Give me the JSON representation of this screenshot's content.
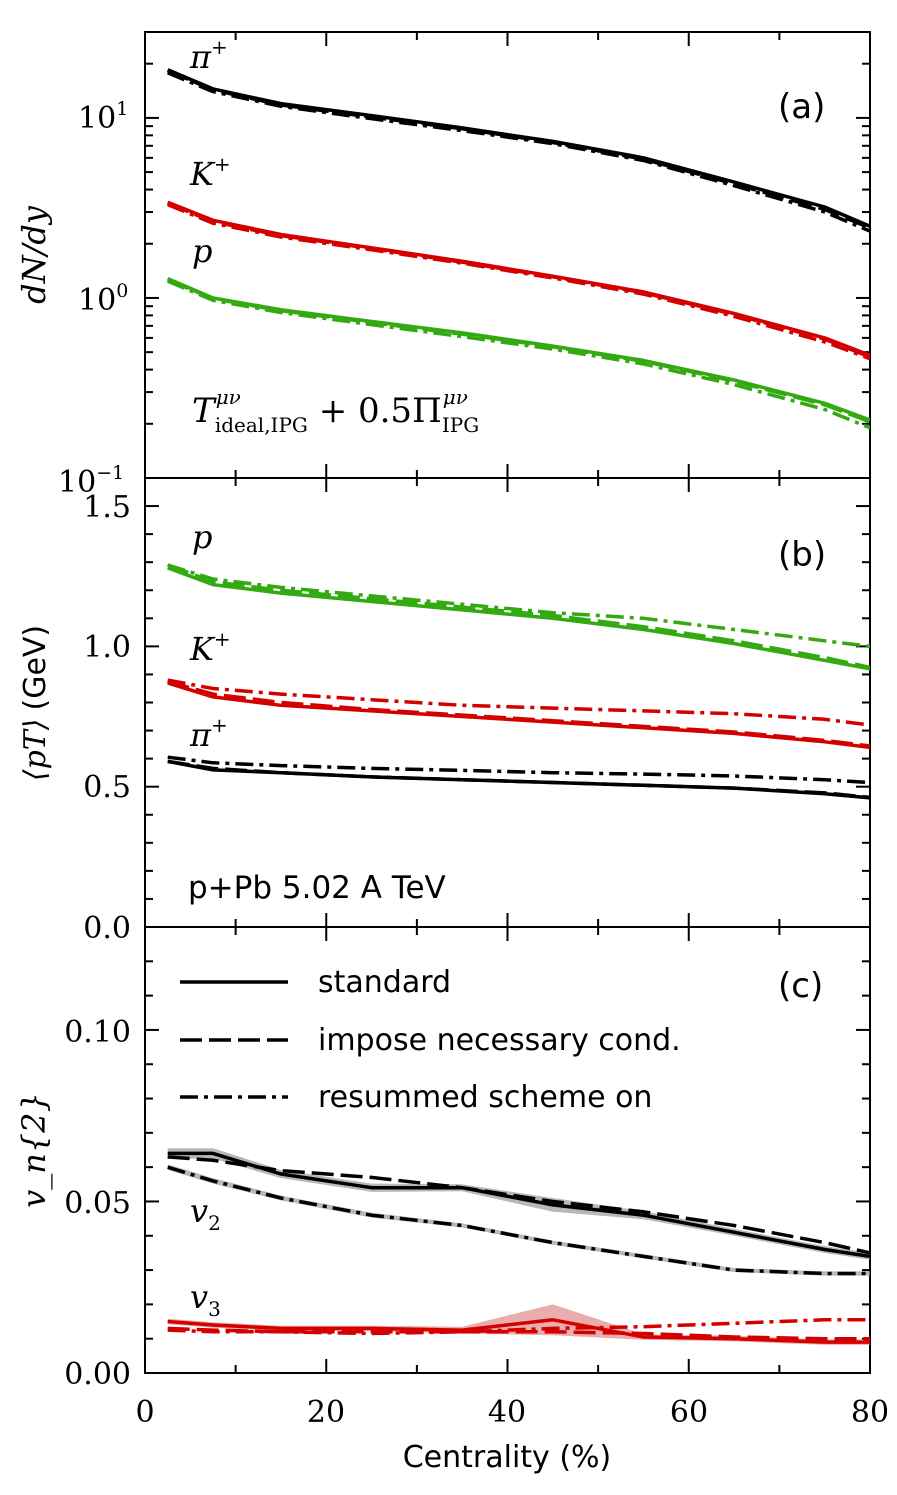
{
  "colors": {
    "pion": "#000000",
    "kaon": "#d40000",
    "proton": "#33aa11",
    "pion_band": "#9a9a9a",
    "kaon_band": "#e08a8a"
  },
  "xaxis": {
    "label": "Centrality (%)",
    "ticks": [
      "0",
      "20",
      "40",
      "60",
      "80"
    ]
  },
  "styles": {
    "standard": "standard",
    "necessary": "impose necessary cond.",
    "resummed": "resummed scheme on"
  },
  "chart_data": [
    {
      "panel": "(a)",
      "type": "line",
      "yscale": "log",
      "ylabel": "dN/dy",
      "ylim": [
        0.1,
        30
      ],
      "xlim": [
        0,
        80
      ],
      "ytick_labels": {
        "t1": "10",
        "t1_exp": "1",
        "t0": "10",
        "t0_exp": "0",
        "tm1": "10",
        "tm1_exp": "−1"
      },
      "annotation": {
        "T": "T",
        "T_sup": "μν",
        "T_sub": "ideal,IPG",
        "mid": " + 0.5Π",
        "Pi_sup": "μν",
        "Pi_sub": "IPG"
      },
      "species_labels": {
        "pion": "π",
        "pion_sup": "+",
        "kaon": "K",
        "kaon_sup": "+",
        "proton": "p"
      },
      "x": [
        2.5,
        7.5,
        15,
        25,
        35,
        45,
        55,
        65,
        75,
        80
      ],
      "series": [
        {
          "name": "π+ standard",
          "species": "pion",
          "style": "standard",
          "values": [
            18.5,
            14.5,
            12.0,
            10.3,
            8.8,
            7.4,
            6.0,
            4.4,
            3.2,
            2.5
          ]
        },
        {
          "name": "π+ impose necessary cond.",
          "species": "pion",
          "style": "necessary",
          "values": [
            18.3,
            14.3,
            11.8,
            10.1,
            8.7,
            7.3,
            5.9,
            4.3,
            3.1,
            2.45
          ]
        },
        {
          "name": "π+ resummed scheme on",
          "species": "pion",
          "style": "resummed",
          "values": [
            17.8,
            14.0,
            11.6,
            9.9,
            8.5,
            7.2,
            5.8,
            4.2,
            3.0,
            2.35
          ]
        },
        {
          "name": "K+ standard",
          "species": "kaon",
          "style": "standard",
          "values": [
            3.4,
            2.7,
            2.25,
            1.9,
            1.6,
            1.32,
            1.08,
            0.82,
            0.6,
            0.48
          ]
        },
        {
          "name": "K+ impose necessary cond.",
          "species": "kaon",
          "style": "necessary",
          "values": [
            3.35,
            2.65,
            2.22,
            1.88,
            1.58,
            1.31,
            1.07,
            0.81,
            0.59,
            0.47
          ]
        },
        {
          "name": "K+ resummed scheme on",
          "species": "kaon",
          "style": "resummed",
          "values": [
            3.3,
            2.6,
            2.18,
            1.85,
            1.56,
            1.29,
            1.05,
            0.79,
            0.57,
            0.46
          ]
        },
        {
          "name": "p standard",
          "species": "proton",
          "style": "standard",
          "values": [
            1.28,
            1.0,
            0.86,
            0.74,
            0.64,
            0.54,
            0.45,
            0.35,
            0.26,
            0.21
          ]
        },
        {
          "name": "p impose necessary cond.",
          "species": "proton",
          "style": "necessary",
          "values": [
            1.26,
            0.99,
            0.85,
            0.73,
            0.63,
            0.535,
            0.445,
            0.345,
            0.255,
            0.205
          ]
        },
        {
          "name": "p resummed scheme on",
          "species": "proton",
          "style": "resummed",
          "values": [
            1.24,
            0.97,
            0.83,
            0.71,
            0.61,
            0.52,
            0.43,
            0.33,
            0.24,
            0.19
          ]
        }
      ]
    },
    {
      "panel": "(b)",
      "type": "line",
      "yscale": "linear",
      "ylabel": "(GeV)",
      "ylabel_math": "⟨pT⟩",
      "ylim": [
        0.0,
        1.6
      ],
      "xlim": [
        0,
        80
      ],
      "ytick_labels": [
        "0.0",
        "0.5",
        "1.0",
        "1.5"
      ],
      "annotation": "p+Pb 5.02 A TeV",
      "species_labels": {
        "pion": "π",
        "pion_sup": "+",
        "kaon": "K",
        "kaon_sup": "+",
        "proton": "p"
      },
      "x": [
        2.5,
        7.5,
        15,
        25,
        35,
        45,
        55,
        65,
        75,
        80
      ],
      "series": [
        {
          "name": "p standard",
          "species": "proton",
          "style": "standard",
          "values": [
            1.28,
            1.22,
            1.19,
            1.16,
            1.13,
            1.1,
            1.06,
            1.01,
            0.95,
            0.92
          ]
        },
        {
          "name": "p impose necessary cond.",
          "species": "proton",
          "style": "necessary",
          "values": [
            1.29,
            1.23,
            1.2,
            1.17,
            1.14,
            1.11,
            1.07,
            1.02,
            0.96,
            0.925
          ]
        },
        {
          "name": "p resummed scheme on",
          "species": "proton",
          "style": "resummed",
          "values": [
            1.29,
            1.24,
            1.21,
            1.18,
            1.15,
            1.12,
            1.1,
            1.06,
            1.02,
            1.0
          ]
        },
        {
          "name": "K+ standard",
          "species": "kaon",
          "style": "standard",
          "values": [
            0.87,
            0.82,
            0.79,
            0.77,
            0.75,
            0.73,
            0.71,
            0.69,
            0.66,
            0.64
          ]
        },
        {
          "name": "K+ impose necessary cond.",
          "species": "kaon",
          "style": "necessary",
          "values": [
            0.875,
            0.83,
            0.8,
            0.775,
            0.755,
            0.735,
            0.715,
            0.695,
            0.665,
            0.645
          ]
        },
        {
          "name": "K+ resummed scheme on",
          "species": "kaon",
          "style": "resummed",
          "values": [
            0.88,
            0.85,
            0.83,
            0.81,
            0.79,
            0.78,
            0.77,
            0.76,
            0.74,
            0.72
          ]
        },
        {
          "name": "π+ standard",
          "species": "pion",
          "style": "standard",
          "values": [
            0.59,
            0.56,
            0.55,
            0.535,
            0.525,
            0.515,
            0.505,
            0.495,
            0.475,
            0.46
          ]
        },
        {
          "name": "π+ impose necessary cond.",
          "species": "pion",
          "style": "necessary",
          "values": [
            0.59,
            0.565,
            0.55,
            0.535,
            0.525,
            0.515,
            0.505,
            0.495,
            0.478,
            0.462
          ]
        },
        {
          "name": "π+ resummed scheme on",
          "species": "pion",
          "style": "resummed",
          "values": [
            0.605,
            0.585,
            0.575,
            0.565,
            0.558,
            0.55,
            0.545,
            0.538,
            0.525,
            0.515
          ]
        }
      ]
    },
    {
      "panel": "(c)",
      "type": "line",
      "yscale": "linear",
      "ylabel": "v_n{2}",
      "ylim": [
        0.0,
        0.13
      ],
      "xlim": [
        0,
        80
      ],
      "ytick_labels": [
        "0.00",
        "0.05",
        "0.10"
      ],
      "harmonic_labels": {
        "v2": "v",
        "v2_sub": "2",
        "v3": "v",
        "v3_sub": "3"
      },
      "x": [
        2.5,
        7.5,
        15,
        25,
        35,
        45,
        55,
        65,
        75,
        80
      ],
      "series": [
        {
          "name": "v2 standard",
          "harmonic": "v2",
          "style": "standard",
          "values": [
            0.064,
            0.064,
            0.058,
            0.054,
            0.054,
            0.049,
            0.046,
            0.041,
            0.036,
            0.034
          ],
          "band": [
            0.0015,
            0.0015,
            0.0012,
            0.0012,
            0.001,
            0.002,
            0.0012,
            0.001,
            0.001,
            0.001
          ]
        },
        {
          "name": "v2 impose necessary cond.",
          "harmonic": "v2",
          "style": "necessary",
          "values": [
            0.063,
            0.062,
            0.059,
            0.057,
            0.054,
            0.05,
            0.047,
            0.043,
            0.038,
            0.035
          ]
        },
        {
          "name": "v2 resummed scheme on",
          "harmonic": "v2",
          "style": "resummed",
          "values": [
            0.06,
            0.056,
            0.051,
            0.046,
            0.043,
            0.038,
            0.034,
            0.03,
            0.029,
            0.029
          ],
          "band": [
            0.0008,
            0.0008,
            0.0007,
            0.0007,
            0.0006,
            0.0006,
            0.0006,
            0.0006,
            0.0006,
            0.0006
          ]
        },
        {
          "name": "v3 standard",
          "harmonic": "v3",
          "style": "standard",
          "values": [
            0.015,
            0.014,
            0.013,
            0.013,
            0.0125,
            0.0155,
            0.0105,
            0.01,
            0.009,
            0.009
          ],
          "band": [
            0.0008,
            0.0008,
            0.0008,
            0.0008,
            0.001,
            0.0045,
            0.0008,
            0.0008,
            0.0008,
            0.0008
          ]
        },
        {
          "name": "v3 impose necessary cond.",
          "harmonic": "v3",
          "style": "necessary",
          "values": [
            0.013,
            0.0125,
            0.012,
            0.012,
            0.012,
            0.012,
            0.0115,
            0.0105,
            0.01,
            0.01
          ]
        },
        {
          "name": "v3 resummed scheme on",
          "harmonic": "v3",
          "style": "resummed",
          "values": [
            0.0125,
            0.012,
            0.012,
            0.0115,
            0.012,
            0.013,
            0.0135,
            0.0145,
            0.0155,
            0.0155
          ]
        }
      ]
    }
  ]
}
